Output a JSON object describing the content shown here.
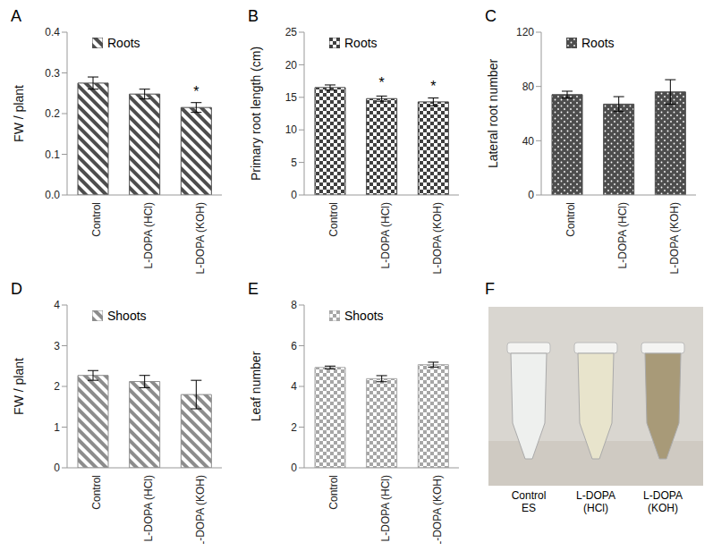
{
  "chart_data": [
    {
      "panel": "A",
      "type": "bar",
      "categories": [
        "Control",
        "L-DOPA (HCl)",
        "L-DOPA (KOH)"
      ],
      "y_label": "FW / plant",
      "legend": "top",
      "series": [
        {
          "name": "Roots",
          "color": "#4d4d4d",
          "values": [
            0.275,
            0.248,
            0.215
          ],
          "errors": [
            0.015,
            0.012,
            0.012
          ]
        }
      ],
      "annotations": [
        {
          "index": 2,
          "text": "*"
        }
      ],
      "ylim": [
        0,
        0.4
      ],
      "yticks": [
        {
          "value": 0,
          "label": "0.0"
        },
        0.1,
        0.2,
        0.3,
        0.4
      ]
    },
    {
      "panel": "B",
      "type": "bar",
      "categories": [
        "Control",
        "L-DOPA (HCl)",
        "L-DOPA (KOH)"
      ],
      "y_label": "Primary root length (cm)",
      "legend": "top",
      "series": [
        {
          "name": "Roots",
          "color": "#404040",
          "values": [
            16.5,
            14.8,
            14.3
          ],
          "errors": [
            0.4,
            0.4,
            0.6
          ]
        }
      ],
      "annotations": [
        {
          "index": 1,
          "text": "*"
        },
        {
          "index": 2,
          "text": "*"
        }
      ],
      "ylim": [
        0,
        25
      ],
      "yticks": [
        0,
        5,
        10,
        15,
        20,
        25
      ]
    },
    {
      "panel": "C",
      "type": "bar",
      "categories": [
        "Control",
        "L-DOPA (HCl)",
        "L-DOPA (KOH)"
      ],
      "y_label": "Lateral root number",
      "legend": "top",
      "series": [
        {
          "name": "Roots",
          "color": "#4d4d4d",
          "values": [
            74,
            67,
            76
          ],
          "errors": [
            2.5,
            5.5,
            9
          ]
        }
      ],
      "ylim": [
        0,
        120
      ],
      "yticks": [
        0,
        40,
        80,
        120
      ]
    },
    {
      "panel": "D",
      "type": "bar",
      "categories": [
        "Control",
        "L-DOPA (HCl)",
        "L-DOPA (KOH)"
      ],
      "y_label": "FW / plant",
      "legend": "top",
      "series": [
        {
          "name": "Shoots",
          "color": "#8c8c8c",
          "values": [
            2.27,
            2.12,
            1.8
          ],
          "errors": [
            0.12,
            0.15,
            0.35
          ]
        }
      ],
      "ylim": [
        0,
        4
      ],
      "yticks": [
        0,
        1,
        2,
        3,
        4
      ]
    },
    {
      "panel": "E",
      "type": "bar",
      "categories": [
        "Control",
        "L-DOPA (HCl)",
        "L-DOPA (KOH)"
      ],
      "y_label": "Leaf number",
      "legend": "top",
      "series": [
        {
          "name": "Shoots",
          "color": "#a6a6a6",
          "values": [
            4.93,
            4.38,
            5.07
          ],
          "errors": [
            0.07,
            0.15,
            0.12
          ]
        }
      ],
      "ylim": [
        0,
        8
      ],
      "yticks": [
        0,
        2,
        4,
        6,
        8
      ]
    }
  ],
  "image": {
    "panel": "F",
    "tubes": [
      {
        "label": "Control",
        "sublabel": "ES"
      },
      {
        "label": "L-DOPA",
        "sublabel": "(HCl)"
      },
      {
        "label": "L-DOPA",
        "sublabel": "(KOH)"
      }
    ]
  }
}
